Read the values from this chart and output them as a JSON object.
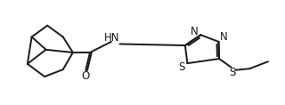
{
  "bg_color": "#ffffff",
  "line_color": "#1a1a1a",
  "line_width": 1.4,
  "font_size": 8.5,
  "xlim": [
    0,
    10
  ],
  "ylim": [
    0,
    3.7
  ]
}
